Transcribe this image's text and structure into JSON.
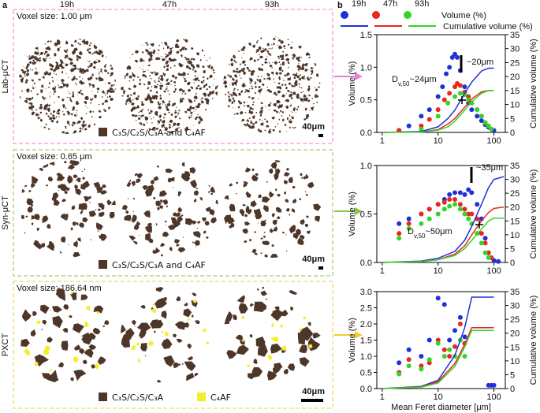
{
  "panel_a": {
    "label": "a",
    "columns": [
      "19h",
      "47h",
      "93h"
    ],
    "rows": [
      {
        "name": "Lab-μCT",
        "voxel": "Voxel size: 1.00 μm",
        "legend": [
          "C₃S/C₂S/C₃A and C₄AF"
        ],
        "scale": "40μm"
      },
      {
        "name": "Syn-μCT",
        "voxel": "Voxel size: 0.65 μm",
        "legend": [
          "C₃S/C₂S/C₃A and C₄AF"
        ],
        "scale": "40μm"
      },
      {
        "name": "PXCT",
        "voxel": "Voxel size: 186.64 nm",
        "legend": [
          "C₃S/C₂S/C₃A",
          "C₄AF"
        ],
        "scale": "40μm"
      }
    ]
  },
  "panel_b": {
    "label": "b",
    "marker_label": "Volume (%)",
    "line_label": "Cumulative volume (%)"
  },
  "chart_data": [
    {
      "type": "scatter",
      "x_log": true,
      "xlim": [
        0.8,
        160
      ],
      "xticks": [
        1,
        10,
        100
      ],
      "ylim": [
        0,
        1.5
      ],
      "yticks": [
        {
          "value": 0,
          "label": "0.0"
        },
        0.5,
        {
          "value": 1,
          "label": "1.0"
        },
        1.5
      ],
      "y2lim": [
        0,
        35
      ],
      "y2ticks": [
        0,
        5,
        10,
        15,
        20,
        25,
        30,
        35
      ],
      "y_label": "Volume (%)",
      "y2_label": "Cumulative volume (%)",
      "peak_label": "~20μm",
      "dv50": {
        "prefix": "D",
        "sub": "v,50",
        "suffix": "~24μm"
      },
      "series": [
        {
          "name": "19h",
          "color": "#2030d8",
          "mode": "markers",
          "x": [
            2,
            3,
            5,
            7,
            10,
            12,
            14,
            16,
            18,
            20,
            22,
            25,
            30,
            35,
            40,
            50,
            60,
            70,
            80,
            90,
            100
          ],
          "values": [
            0.03,
            0.1,
            0.25,
            0.35,
            0.55,
            0.7,
            0.9,
            1.0,
            1.15,
            1.2,
            1.15,
            0.95,
            0.7,
            0.45,
            0.35,
            0.25,
            0.18,
            0.12,
            0.08,
            0.05,
            0.03
          ]
        },
        {
          "name": "47h",
          "color": "#e8281e",
          "mode": "markers",
          "x": [
            2,
            5,
            7,
            10,
            13,
            16,
            20,
            22,
            25,
            30,
            35,
            40,
            50,
            60,
            70,
            80,
            90
          ],
          "values": [
            0.03,
            0.1,
            0.2,
            0.35,
            0.5,
            0.6,
            0.7,
            0.75,
            0.72,
            0.62,
            0.55,
            0.45,
            0.35,
            0.25,
            0.15,
            0.1,
            0.05
          ]
        },
        {
          "name": "93h",
          "color": "#33d52a",
          "mode": "markers",
          "x": [
            5,
            10,
            15,
            20,
            25,
            30,
            35,
            40,
            50,
            60,
            70,
            80,
            90
          ],
          "values": [
            0.05,
            0.25,
            0.45,
            0.55,
            0.6,
            0.58,
            0.5,
            0.45,
            0.35,
            0.25,
            0.15,
            0.1,
            0.05
          ]
        },
        {
          "name": "19h",
          "color": "#2030d8",
          "mode": "lines",
          "axis": "y2",
          "x": [
            1,
            5,
            10,
            15,
            20,
            30,
            40,
            60,
            80,
            100
          ],
          "values": [
            0,
            0.3,
            2,
            5,
            8,
            14,
            18,
            22,
            23,
            23
          ]
        },
        {
          "name": "47h",
          "color": "#e8281e",
          "mode": "lines",
          "axis": "y2",
          "x": [
            1,
            5,
            10,
            15,
            20,
            30,
            40,
            60,
            80,
            100
          ],
          "values": [
            0,
            0.1,
            1,
            3,
            5,
            9,
            12,
            14.5,
            15,
            15
          ]
        },
        {
          "name": "93h",
          "color": "#33d52a",
          "mode": "lines",
          "axis": "y2",
          "x": [
            1,
            5,
            10,
            15,
            20,
            30,
            40,
            60,
            80,
            100
          ],
          "values": [
            0,
            0.1,
            0.8,
            2,
            4,
            8,
            11,
            14,
            15,
            15
          ]
        }
      ]
    },
    {
      "type": "scatter",
      "x_log": true,
      "xlim": [
        0.8,
        160
      ],
      "xticks": [
        1,
        10,
        100
      ],
      "ylim": [
        0,
        1
      ],
      "yticks": [
        {
          "value": 0,
          "label": "0.0"
        },
        0.5,
        {
          "value": 1,
          "label": "1.0"
        }
      ],
      "y2lim": [
        0,
        35
      ],
      "y2ticks": [
        0,
        5,
        10,
        15,
        20,
        25,
        30,
        35
      ],
      "y_label": "Volume (%)",
      "y2_label": "Cumulative volume (%)",
      "peak_label": "~35μm",
      "dv50": {
        "prefix": "D",
        "sub": "v,50",
        "suffix": "~50μm"
      },
      "series": [
        {
          "name": "19h",
          "color": "#2030d8",
          "mode": "markers",
          "x": [
            2,
            3,
            5,
            7,
            10,
            13,
            16,
            20,
            25,
            30,
            35,
            40,
            50,
            60,
            70,
            80,
            100,
            120
          ],
          "values": [
            0.4,
            0.45,
            0.5,
            0.55,
            0.6,
            0.65,
            0.7,
            0.72,
            0.72,
            0.7,
            0.75,
            0.72,
            0.6,
            0.45,
            0.25,
            0.1,
            0.02,
            0.01
          ]
        },
        {
          "name": "47h",
          "color": "#e8281e",
          "mode": "markers",
          "x": [
            2,
            3,
            5,
            7,
            10,
            13,
            16,
            20,
            25,
            30,
            35,
            40,
            50,
            60,
            70,
            80,
            90
          ],
          "values": [
            0.3,
            0.4,
            0.5,
            0.55,
            0.6,
            0.62,
            0.65,
            0.65,
            0.6,
            0.55,
            0.5,
            0.5,
            0.45,
            0.3,
            0.2,
            0.1,
            0.05
          ]
        },
        {
          "name": "93h",
          "color": "#33d52a",
          "mode": "markers",
          "x": [
            2,
            3,
            5,
            7,
            10,
            13,
            16,
            20,
            25,
            30,
            35,
            40,
            50,
            60,
            70,
            80
          ],
          "values": [
            0.25,
            0.35,
            0.4,
            0.45,
            0.5,
            0.55,
            0.58,
            0.6,
            0.55,
            0.5,
            0.45,
            0.4,
            0.3,
            0.2,
            0.1,
            0.05
          ]
        },
        {
          "name": "19h",
          "color": "#2030d8",
          "mode": "lines",
          "axis": "y2",
          "x": [
            1,
            5,
            10,
            20,
            30,
            40,
            60,
            80,
            100,
            150
          ],
          "values": [
            0,
            0.5,
            1.5,
            4,
            8,
            13,
            21,
            27,
            30,
            31
          ]
        },
        {
          "name": "47h",
          "color": "#e8281e",
          "mode": "lines",
          "axis": "y2",
          "x": [
            1,
            5,
            10,
            20,
            30,
            40,
            60,
            80,
            100,
            150
          ],
          "values": [
            0,
            0.3,
            1,
            3,
            6,
            10,
            15,
            18,
            19.5,
            20
          ]
        },
        {
          "name": "93h",
          "color": "#33d52a",
          "mode": "lines",
          "axis": "y2",
          "x": [
            1,
            5,
            10,
            20,
            30,
            40,
            60,
            80,
            100,
            150
          ],
          "values": [
            0,
            0.3,
            1,
            2.5,
            5,
            8,
            12,
            15,
            16,
            16
          ]
        }
      ]
    },
    {
      "type": "scatter",
      "x_log": true,
      "xlim": [
        0.8,
        160
      ],
      "xticks": [
        1,
        10,
        100
      ],
      "ylim": [
        0,
        3
      ],
      "yticks": [
        {
          "value": 0,
          "label": "0.0"
        },
        0.5,
        {
          "value": 1,
          "label": "1.0"
        },
        1.5,
        {
          "value": 2,
          "label": "2.0"
        },
        2.5,
        {
          "value": 3,
          "label": "3.0"
        }
      ],
      "y2lim": [
        0,
        35
      ],
      "y2ticks": [
        0,
        5,
        10,
        15,
        20,
        25,
        30,
        35
      ],
      "y_label": "Volume (%)",
      "y2_label": "Cumulative volume (%)",
      "x_label": "Mean Feret diameter [μm]",
      "series": [
        {
          "name": "19h",
          "color": "#2030d8",
          "mode": "markers",
          "x": [
            2,
            3,
            5,
            7,
            10,
            13,
            16,
            20,
            25,
            30,
            80,
            90,
            100
          ],
          "values": [
            0.8,
            1.2,
            1.0,
            1.5,
            2.8,
            2.6,
            1.5,
            1.8,
            2.2,
            1.6,
            0.1,
            0.1,
            0.1
          ]
        },
        {
          "name": "47h",
          "color": "#e8281e",
          "mode": "markers",
          "x": [
            2,
            3,
            5,
            7,
            10,
            13,
            16,
            20,
            25,
            30
          ],
          "values": [
            0.5,
            0.9,
            0.7,
            0.8,
            1.5,
            1.2,
            1.0,
            1.3,
            2.0,
            1.4
          ]
        },
        {
          "name": "93h",
          "color": "#33d52a",
          "mode": "markers",
          "x": [
            2,
            3,
            5,
            7,
            10,
            13,
            16,
            20,
            25,
            30
          ],
          "values": [
            0.45,
            0.7,
            0.6,
            0.9,
            1.4,
            1.0,
            1.2,
            1.0,
            1.5,
            1.0
          ]
        },
        {
          "name": "19h",
          "color": "#2030d8",
          "mode": "lines",
          "axis": "y2",
          "x": [
            1,
            5,
            10,
            20,
            30,
            40,
            60,
            100
          ],
          "values": [
            0,
            0.8,
            3,
            12,
            22,
            33,
            33,
            33
          ]
        },
        {
          "name": "47h",
          "color": "#e8281e",
          "mode": "lines",
          "axis": "y2",
          "x": [
            1,
            5,
            10,
            20,
            30,
            40,
            60,
            100
          ],
          "values": [
            0,
            0.6,
            2.5,
            9,
            16,
            22,
            22,
            22
          ]
        },
        {
          "name": "93h",
          "color": "#33d52a",
          "mode": "lines",
          "axis": "y2",
          "x": [
            1,
            5,
            10,
            20,
            30,
            40,
            60,
            100
          ],
          "values": [
            0,
            0.5,
            2,
            8,
            15,
            21,
            21,
            21
          ]
        }
      ]
    }
  ]
}
